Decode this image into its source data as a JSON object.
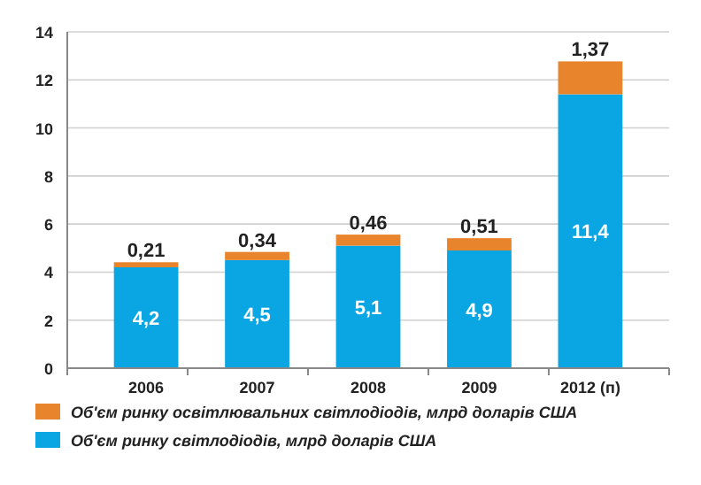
{
  "chart_data": {
    "type": "bar",
    "stacked": true,
    "categories": [
      "2006",
      "2007",
      "2008",
      "2009",
      "2012 (п)"
    ],
    "series": [
      {
        "name": "Об'єм ринку світлодіодів, млрд доларів США",
        "color": "#0aa5e3",
        "values": [
          4.2,
          4.5,
          5.1,
          4.9,
          11.4
        ],
        "value_labels": [
          "4,2",
          "4,5",
          "5,1",
          "4,9",
          "11,4"
        ]
      },
      {
        "name": "Об'єм ринку освітлювальних світлодіодів, млрд доларів США",
        "color": "#e8842c",
        "values": [
          0.21,
          0.34,
          0.46,
          0.51,
          1.37
        ],
        "value_labels": [
          "0,21",
          "0,34",
          "0,46",
          "0,51",
          "1,37"
        ]
      }
    ],
    "ylim": [
      0,
      14
    ],
    "yticks": [
      0,
      2,
      4,
      6,
      8,
      10,
      12,
      14
    ],
    "grid": "y",
    "legend": "bottom"
  }
}
